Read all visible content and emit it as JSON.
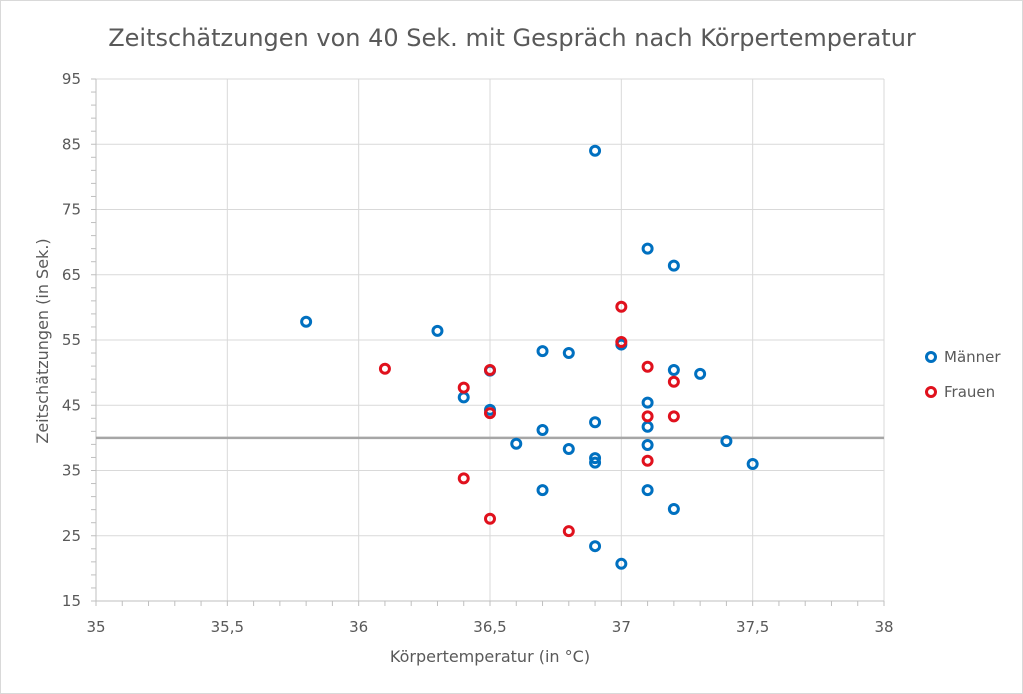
{
  "chart_data": {
    "type": "scatter",
    "title": "Zeitschätzungen von 40 Sek. mit Gespräch nach Körpertemperatur",
    "xlabel": "Körpertemperatur (in °C)",
    "ylabel": "Zeitschätzungen (in Sek.)",
    "xlim": [
      35,
      38
    ],
    "ylim": [
      15,
      95
    ],
    "x_ticks": [
      "35",
      "35,5",
      "36",
      "36,5",
      "37",
      "37,5",
      "38"
    ],
    "x_tick_values": [
      35,
      35.5,
      36,
      36.5,
      37,
      37.5,
      38
    ],
    "y_ticks": [
      "15",
      "25",
      "35",
      "45",
      "55",
      "65",
      "75",
      "85",
      "95"
    ],
    "y_tick_values": [
      15,
      25,
      35,
      45,
      55,
      65,
      75,
      85,
      95
    ],
    "grid": true,
    "legend_position": "right",
    "reference_line": {
      "y": 40,
      "color": "#a6a6a6"
    },
    "series": [
      {
        "name": "Männer",
        "color": "#0070c0",
        "points": [
          [
            35.8,
            57.8
          ],
          [
            36.3,
            56.4
          ],
          [
            36.4,
            46.2
          ],
          [
            36.5,
            50.3
          ],
          [
            36.5,
            44.3
          ],
          [
            36.6,
            39.1
          ],
          [
            36.7,
            53.3
          ],
          [
            36.7,
            41.2
          ],
          [
            36.7,
            32.0
          ],
          [
            36.8,
            53.0
          ],
          [
            36.8,
            38.3
          ],
          [
            36.9,
            84.0
          ],
          [
            36.9,
            42.4
          ],
          [
            36.9,
            36.9
          ],
          [
            36.9,
            36.2
          ],
          [
            36.9,
            23.4
          ],
          [
            37.0,
            54.3
          ],
          [
            37.0,
            20.7
          ],
          [
            37.1,
            69.0
          ],
          [
            37.1,
            45.4
          ],
          [
            37.1,
            41.7
          ],
          [
            37.1,
            38.9
          ],
          [
            37.1,
            32.0
          ],
          [
            37.2,
            66.4
          ],
          [
            37.2,
            50.4
          ],
          [
            37.2,
            29.1
          ],
          [
            37.3,
            49.8
          ],
          [
            37.4,
            39.5
          ],
          [
            37.5,
            36.0
          ]
        ]
      },
      {
        "name": "Frauen",
        "color": "#e0111d",
        "points": [
          [
            36.1,
            50.6
          ],
          [
            36.4,
            47.7
          ],
          [
            36.4,
            33.8
          ],
          [
            36.5,
            50.4
          ],
          [
            36.5,
            43.8
          ],
          [
            36.5,
            27.6
          ],
          [
            36.8,
            25.7
          ],
          [
            37.0,
            60.1
          ],
          [
            37.0,
            54.7
          ],
          [
            37.1,
            50.9
          ],
          [
            37.1,
            43.3
          ],
          [
            37.1,
            36.5
          ],
          [
            37.2,
            48.6
          ],
          [
            37.2,
            43.3
          ]
        ]
      }
    ]
  }
}
